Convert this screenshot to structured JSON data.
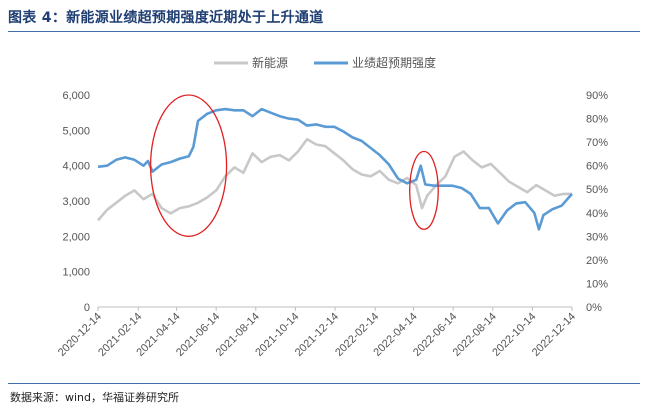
{
  "header": {
    "title": "图表 4：新能源业绩超预期强度近期处于上升通道"
  },
  "footer": {
    "source": "数据来源：wind，华福证券研究所"
  },
  "colors": {
    "series_gray": "#c8c8c8",
    "series_blue": "#5b9bd5",
    "ellipse": "#e02020",
    "rule": "#3f6ea8"
  },
  "chart_data": {
    "type": "line",
    "legend": {
      "placement": "top-center"
    },
    "grid": false,
    "x_dates": [
      "2020-12-14",
      "2021-02-14",
      "2021-04-14",
      "2021-06-14",
      "2021-08-14",
      "2021-10-14",
      "2021-12-14",
      "2022-02-14",
      "2022-04-14",
      "2022-06-14",
      "2022-08-14",
      "2022-10-14",
      "2022-12-14"
    ],
    "x_tick_labels": [
      "2020-12-14",
      "2021-02-14",
      "2021-04-14",
      "2021-06-14",
      "2021-08-14",
      "2021-10-14",
      "2021-12-14",
      "2022-02-14",
      "2022-04-14",
      "2022-06-14",
      "2022-08-14",
      "2022-10-14",
      "2022-12-14"
    ],
    "y_left": {
      "min": 0,
      "max": 6000,
      "ticks": [
        "0",
        "1,000",
        "2,000",
        "3,000",
        "4,000",
        "5,000",
        "6,000"
      ]
    },
    "y_right": {
      "min": 0,
      "max": 0.9,
      "ticks": [
        "0%",
        "10%",
        "20%",
        "30%",
        "40%",
        "50%",
        "60%",
        "70%",
        "80%",
        "90%"
      ]
    },
    "series": [
      {
        "name": "新能源",
        "axis": "left",
        "points": [
          [
            "2020-12-14",
            2450
          ],
          [
            "2020-12-28",
            2750
          ],
          [
            "2021-01-11",
            2950
          ],
          [
            "2021-01-25",
            3150
          ],
          [
            "2021-02-08",
            3300
          ],
          [
            "2021-02-22",
            3050
          ],
          [
            "2021-03-08",
            3200
          ],
          [
            "2021-03-22",
            2800
          ],
          [
            "2021-04-05",
            2650
          ],
          [
            "2021-04-19",
            2800
          ],
          [
            "2021-05-03",
            2850
          ],
          [
            "2021-05-17",
            2950
          ],
          [
            "2021-05-31",
            3100
          ],
          [
            "2021-06-14",
            3300
          ],
          [
            "2021-06-28",
            3700
          ],
          [
            "2021-07-12",
            3950
          ],
          [
            "2021-07-26",
            3800
          ],
          [
            "2021-08-09",
            4350
          ],
          [
            "2021-08-23",
            4100
          ],
          [
            "2021-09-06",
            4250
          ],
          [
            "2021-09-20",
            4300
          ],
          [
            "2021-10-04",
            4150
          ],
          [
            "2021-10-18",
            4400
          ],
          [
            "2021-11-01",
            4750
          ],
          [
            "2021-11-15",
            4600
          ],
          [
            "2021-11-29",
            4550
          ],
          [
            "2021-12-13",
            4350
          ],
          [
            "2021-12-27",
            4150
          ],
          [
            "2022-01-10",
            3900
          ],
          [
            "2022-01-24",
            3750
          ],
          [
            "2022-02-07",
            3700
          ],
          [
            "2022-02-21",
            3850
          ],
          [
            "2022-03-07",
            3600
          ],
          [
            "2022-03-21",
            3500
          ],
          [
            "2022-04-04",
            3650
          ],
          [
            "2022-04-18",
            3450
          ],
          [
            "2022-04-27",
            2800
          ],
          [
            "2022-05-05",
            3150
          ],
          [
            "2022-05-19",
            3450
          ],
          [
            "2022-06-02",
            3700
          ],
          [
            "2022-06-16",
            4250
          ],
          [
            "2022-06-30",
            4400
          ],
          [
            "2022-07-14",
            4150
          ],
          [
            "2022-07-28",
            3950
          ],
          [
            "2022-08-11",
            4050
          ],
          [
            "2022-08-25",
            3800
          ],
          [
            "2022-09-08",
            3550
          ],
          [
            "2022-09-22",
            3400
          ],
          [
            "2022-10-06",
            3250
          ],
          [
            "2022-10-20",
            3450
          ],
          [
            "2022-11-03",
            3300
          ],
          [
            "2022-11-17",
            3150
          ],
          [
            "2022-12-01",
            3200
          ],
          [
            "2022-12-14",
            3200
          ]
        ]
      },
      {
        "name": "业绩超预期强度",
        "axis": "right",
        "points": [
          [
            "2020-12-14",
            0.595
          ],
          [
            "2020-12-28",
            0.6
          ],
          [
            "2021-01-11",
            0.625
          ],
          [
            "2021-01-25",
            0.635
          ],
          [
            "2021-02-08",
            0.625
          ],
          [
            "2021-02-22",
            0.6
          ],
          [
            "2021-03-01",
            0.62
          ],
          [
            "2021-03-08",
            0.575
          ],
          [
            "2021-03-22",
            0.605
          ],
          [
            "2021-04-05",
            0.615
          ],
          [
            "2021-04-19",
            0.63
          ],
          [
            "2021-05-03",
            0.64
          ],
          [
            "2021-05-10",
            0.68
          ],
          [
            "2021-05-17",
            0.79
          ],
          [
            "2021-05-31",
            0.82
          ],
          [
            "2021-06-14",
            0.835
          ],
          [
            "2021-06-28",
            0.84
          ],
          [
            "2021-07-12",
            0.835
          ],
          [
            "2021-07-26",
            0.835
          ],
          [
            "2021-08-09",
            0.81
          ],
          [
            "2021-08-23",
            0.84
          ],
          [
            "2021-09-06",
            0.825
          ],
          [
            "2021-09-20",
            0.81
          ],
          [
            "2021-10-04",
            0.8
          ],
          [
            "2021-10-18",
            0.795
          ],
          [
            "2021-11-01",
            0.77
          ],
          [
            "2021-11-15",
            0.775
          ],
          [
            "2021-11-29",
            0.765
          ],
          [
            "2021-12-13",
            0.765
          ],
          [
            "2021-12-27",
            0.745
          ],
          [
            "2022-01-10",
            0.72
          ],
          [
            "2022-01-24",
            0.705
          ],
          [
            "2022-02-07",
            0.675
          ],
          [
            "2022-02-21",
            0.645
          ],
          [
            "2022-03-07",
            0.605
          ],
          [
            "2022-03-21",
            0.545
          ],
          [
            "2022-04-04",
            0.525
          ],
          [
            "2022-04-18",
            0.54
          ],
          [
            "2022-04-25",
            0.6
          ],
          [
            "2022-05-02",
            0.52
          ],
          [
            "2022-05-16",
            0.515
          ],
          [
            "2022-05-30",
            0.515
          ],
          [
            "2022-06-13",
            0.515
          ],
          [
            "2022-06-27",
            0.505
          ],
          [
            "2022-07-11",
            0.48
          ],
          [
            "2022-07-25",
            0.42
          ],
          [
            "2022-08-08",
            0.42
          ],
          [
            "2022-08-22",
            0.355
          ],
          [
            "2022-09-05",
            0.41
          ],
          [
            "2022-09-19",
            0.44
          ],
          [
            "2022-10-03",
            0.445
          ],
          [
            "2022-10-17",
            0.4
          ],
          [
            "2022-10-24",
            0.33
          ],
          [
            "2022-10-31",
            0.39
          ],
          [
            "2022-11-14",
            0.415
          ],
          [
            "2022-11-28",
            0.43
          ],
          [
            "2022-12-14",
            0.48
          ]
        ]
      }
    ],
    "annotations": [
      {
        "type": "ellipse",
        "from": "2021-03-05",
        "to": "2021-06-30",
        "y_left_low": 2000,
        "y_left_high": 6000
      },
      {
        "type": "ellipse",
        "from": "2022-04-08",
        "to": "2022-05-22",
        "y_left_low": 2200,
        "y_left_high": 4400
      }
    ]
  }
}
